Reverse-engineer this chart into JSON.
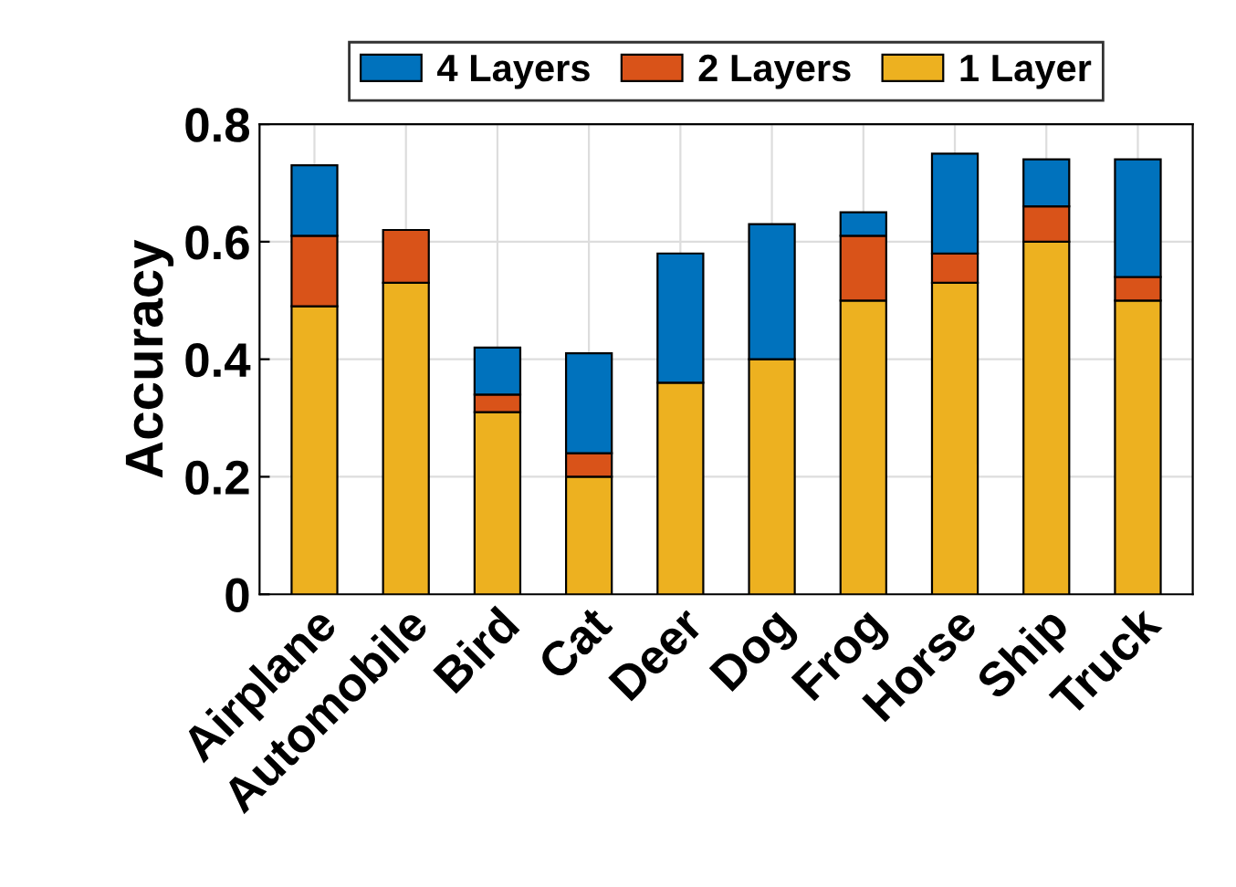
{
  "chart_data": {
    "type": "bar",
    "stacked": true,
    "ylabel": "Accuracy",
    "categories": [
      "Airplane",
      "Automobile",
      "Bird",
      "Cat",
      "Deer",
      "Dog",
      "Frog",
      "Horse",
      "Ship",
      "Truck"
    ],
    "series": [
      {
        "name": "1 Layer",
        "color": "#edb120",
        "values": [
          0.49,
          0.53,
          0.31,
          0.2,
          0.36,
          0.4,
          0.5,
          0.53,
          0.6,
          0.5
        ]
      },
      {
        "name": "2 Layers",
        "color": "#d95319",
        "values": [
          0.12,
          0.09,
          0.03,
          0.04,
          null,
          null,
          0.11,
          0.05,
          0.06,
          0.04
        ]
      },
      {
        "name": "4 Layers",
        "color": "#0072bd",
        "values": [
          0.12,
          null,
          0.08,
          0.17,
          0.22,
          0.23,
          0.04,
          0.17,
          0.08,
          0.2
        ]
      }
    ],
    "ylim": [
      0,
      0.8
    ],
    "yticks": [
      0,
      0.2,
      0.4,
      0.6,
      0.8
    ],
    "grid": true,
    "legend": "top"
  }
}
